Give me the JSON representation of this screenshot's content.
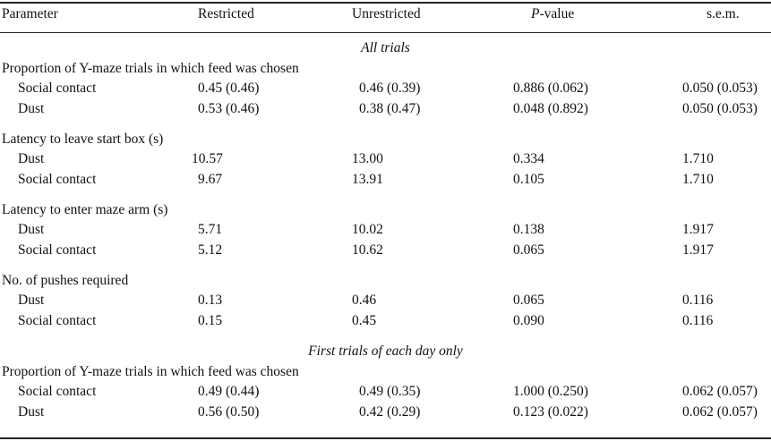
{
  "header": {
    "parameter": "Parameter",
    "restricted": "Restricted",
    "unrestricted": "Unrestricted",
    "p_italic": "P",
    "p_suffix": "-value",
    "sem": "s.e.m."
  },
  "sections": [
    {
      "title": "All trials",
      "groups": [
        {
          "label": "Proportion of Y-maze trials in which feed was chosen",
          "rows": [
            {
              "name": "Social contact",
              "restricted": "0.45 (0.46)",
              "unrestricted": "0.46 (0.39)",
              "p": "0.886 (0.062)",
              "sem": "0.050 (0.053)"
            },
            {
              "name": "Dust",
              "restricted": "0.53 (0.46)",
              "unrestricted": "0.38 (0.47)",
              "p": "0.048 (0.892)",
              "sem": "0.050 (0.053)"
            }
          ]
        },
        {
          "label": "Latency to leave start box (s)",
          "rows": [
            {
              "name": "Dust",
              "restricted": "10.57",
              "unrestricted": "13.00",
              "p": "0.334",
              "sem": "1.710"
            },
            {
              "name": "Social contact",
              "restricted": "9.67",
              "unrestricted": "13.91",
              "p": "0.105",
              "sem": "1.710"
            }
          ]
        },
        {
          "label": "Latency to enter maze arm (s)",
          "rows": [
            {
              "name": "Dust",
              "restricted": "5.71",
              "unrestricted": "10.02",
              "p": "0.138",
              "sem": "1.917"
            },
            {
              "name": "Social contact",
              "restricted": "5.12",
              "unrestricted": "10.62",
              "p": "0.065",
              "sem": "1.917"
            }
          ]
        },
        {
          "label": "No. of pushes required",
          "rows": [
            {
              "name": "Dust",
              "restricted": "0.13",
              "unrestricted": "0.46",
              "p": "0.065",
              "sem": "0.116"
            },
            {
              "name": "Social contact",
              "restricted": "0.15",
              "unrestricted": "0.45",
              "p": "0.090",
              "sem": "0.116"
            }
          ]
        }
      ]
    },
    {
      "title": "First trials of each day only",
      "groups": [
        {
          "label": "Proportion of Y-maze trials in which feed was chosen",
          "rows": [
            {
              "name": "Social contact",
              "restricted": "0.49 (0.44)",
              "unrestricted": "0.49 (0.35)",
              "p": "1.000 (0.250)",
              "sem": "0.062 (0.057)"
            },
            {
              "name": "Dust",
              "restricted": "0.56 (0.50)",
              "unrestricted": "0.42 (0.29)",
              "p": "0.123 (0.022)",
              "sem": "0.062 (0.057)"
            }
          ]
        }
      ]
    }
  ]
}
